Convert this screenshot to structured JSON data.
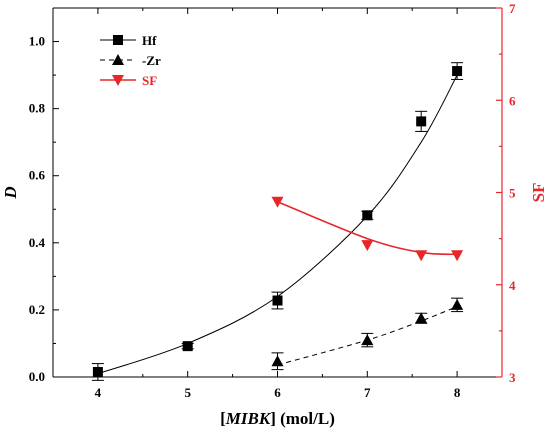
{
  "chart_data": {
    "type": "scatter",
    "xlabel_parts": [
      "[",
      "MIBK",
      "] (mol/L)"
    ],
    "ylabel": "D",
    "y2label": "SF",
    "xlim": [
      3.5,
      8.5
    ],
    "ylim": [
      0,
      1.1
    ],
    "y2lim": [
      3,
      7
    ],
    "x_ticks": [
      "4",
      "5",
      "6",
      "7",
      "8"
    ],
    "y_ticks": [
      "0.0",
      "0.2",
      "0.4",
      "0.6",
      "0.8",
      "1.0"
    ],
    "y2_ticks": [
      "3",
      "4",
      "5",
      "6",
      "7"
    ],
    "grid": false,
    "legend_position": "top-left",
    "series": [
      {
        "name": "Hf",
        "axis": "left",
        "marker": "square",
        "color": "#000000",
        "line": "solid",
        "x": [
          4,
          5,
          6,
          7,
          7.6,
          8
        ],
        "y": [
          0.015,
          0.092,
          0.228,
          0.482,
          0.762,
          0.912
        ],
        "err": [
          0.025,
          0.008,
          0.025,
          0.012,
          0.03,
          0.025
        ],
        "fit_x": [
          4,
          5,
          6,
          7,
          7.6,
          8
        ],
        "fit_y": [
          0.01,
          0.1,
          0.24,
          0.48,
          0.7,
          0.9
        ]
      },
      {
        "name": "-Zr",
        "axis": "left",
        "marker": "triangle-up",
        "color": "#000000",
        "line": "dashed",
        "x": [
          6,
          7,
          7.6,
          8
        ],
        "y": [
          0.047,
          0.11,
          0.175,
          0.215
        ],
        "err": [
          0.025,
          0.02,
          0.015,
          0.02
        ],
        "fit_x": [
          6,
          7,
          7.6,
          8
        ],
        "fit_y": [
          0.036,
          0.11,
          0.167,
          0.21
        ]
      },
      {
        "name": "SF",
        "axis": "right",
        "marker": "triangle-down",
        "color": "#e8262a",
        "line": "solid",
        "x": [
          6,
          7,
          7.6,
          8
        ],
        "y": [
          4.9,
          4.43,
          4.32,
          4.32
        ],
        "fit_x": [
          6,
          7,
          7.6,
          8
        ],
        "fit_y": [
          4.9,
          4.5,
          4.35,
          4.33
        ]
      }
    ]
  }
}
